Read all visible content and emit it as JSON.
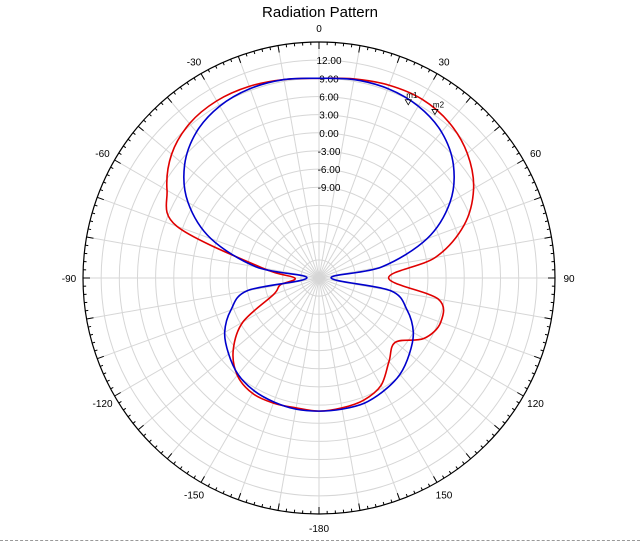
{
  "chart_data": {
    "type": "polar-line",
    "title": "Radiation Pattern",
    "angle_ticks": [
      0,
      30,
      60,
      90,
      120,
      150,
      -180,
      -150,
      -120,
      -90,
      -60,
      -30
    ],
    "angle_labels": [
      "0",
      "30",
      "60",
      "90",
      "120",
      "150",
      "-180",
      "-150",
      "-120",
      "-90",
      "-60",
      "-30"
    ],
    "radial_ticks": [
      12.0,
      9.0,
      6.0,
      3.0,
      0.0,
      -3.0,
      -6.0,
      -9.0
    ],
    "radial_labels": [
      "12.00",
      "9.00",
      "6.00",
      "3.00",
      "0.00",
      "-3.00",
      "-6.00",
      "-9.00"
    ],
    "rlim": [
      -24,
      15
    ],
    "grid": true,
    "series": [
      {
        "color": "#e00000",
        "points": [
          [
            0,
            9.0
          ],
          [
            10,
            9.4
          ],
          [
            20,
            9.9
          ],
          [
            30,
            10.1
          ],
          [
            40,
            9.5
          ],
          [
            50,
            8.0
          ],
          [
            60,
            5.5
          ],
          [
            70,
            1.5
          ],
          [
            80,
            -4.5
          ],
          [
            90,
            -12.5
          ],
          [
            100,
            -4.0
          ],
          [
            110,
            -2.6
          ],
          [
            120,
            -4.0
          ],
          [
            130,
            -7.5
          ],
          [
            140,
            -6.0
          ],
          [
            150,
            -3.5
          ],
          [
            160,
            -2.5
          ],
          [
            170,
            -2.2
          ],
          [
            180,
            -2.0
          ],
          [
            -170,
            -2.2
          ],
          [
            -160,
            -2.0
          ],
          [
            -150,
            -2.0
          ],
          [
            -140,
            -3.0
          ],
          [
            -130,
            -5.5
          ],
          [
            -120,
            -9.5
          ],
          [
            -110,
            -16.0
          ],
          [
            -100,
            -17.5
          ],
          [
            -90,
            -20.0
          ],
          [
            -80,
            -14.5
          ],
          [
            -70,
            1.0
          ],
          [
            -60,
            5.0
          ],
          [
            -50,
            7.8
          ],
          [
            -40,
            9.3
          ],
          [
            -30,
            9.8
          ],
          [
            -20,
            9.7
          ],
          [
            -10,
            9.3
          ],
          [
            0,
            9.0
          ]
        ]
      },
      {
        "color": "#0000cc",
        "points": [
          [
            0,
            9.0
          ],
          [
            10,
            9.3
          ],
          [
            20,
            9.3
          ],
          [
            30,
            8.8
          ],
          [
            40,
            7.5
          ],
          [
            50,
            5.0
          ],
          [
            60,
            1.0
          ],
          [
            70,
            -5.0
          ],
          [
            80,
            -13.5
          ],
          [
            90,
            -22.0
          ],
          [
            100,
            -12.0
          ],
          [
            110,
            -8.5
          ],
          [
            120,
            -6.0
          ],
          [
            130,
            -4.5
          ],
          [
            140,
            -3.2
          ],
          [
            150,
            -2.5
          ],
          [
            160,
            -2.0
          ],
          [
            170,
            -2.0
          ],
          [
            180,
            -2.0
          ],
          [
            -170,
            -2.0
          ],
          [
            -160,
            -2.2
          ],
          [
            -150,
            -2.5
          ],
          [
            -140,
            -3.2
          ],
          [
            -130,
            -4.5
          ],
          [
            -120,
            -6.0
          ],
          [
            -110,
            -8.5
          ],
          [
            -100,
            -12.0
          ],
          [
            -90,
            -22.0
          ],
          [
            -80,
            -13.5
          ],
          [
            -70,
            -5.0
          ],
          [
            -60,
            1.0
          ],
          [
            -50,
            5.0
          ],
          [
            -40,
            7.5
          ],
          [
            -30,
            8.8
          ],
          [
            -20,
            9.3
          ],
          [
            -10,
            9.3
          ],
          [
            0,
            9.0
          ]
        ]
      }
    ],
    "markers": [
      {
        "label": "m1",
        "angle": 27,
        "value": 8.5
      },
      {
        "label": "m2",
        "angle": 35,
        "value": 9.4
      }
    ]
  }
}
